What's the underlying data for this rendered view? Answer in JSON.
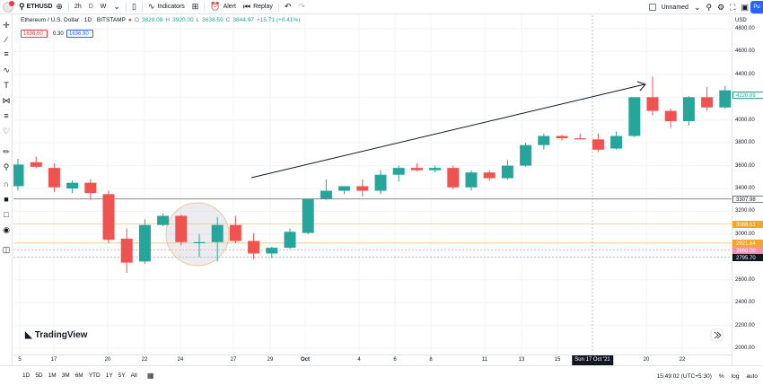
{
  "toolbar": {
    "symbol": "ETHUSD",
    "intervals": [
      "2h",
      "D",
      "W"
    ],
    "indicators_label": "Indicators",
    "alert_label": "Alert",
    "replay_label": "Replay",
    "layout_name": "Unnamed",
    "publish_label": "Pu"
  },
  "legend": {
    "title": "Ethereum / U.S. Dollar · 1D · BITSTAMP",
    "o_label": "O",
    "o_value": "3828.09",
    "h_label": "H",
    "h_value": "3920.00",
    "l_label": "L",
    "l_value": "3638.59",
    "c_label": "C",
    "c_value": "3844.97",
    "change": "+15.71 (+0.41%)",
    "sell_price": "1636.60",
    "spread": "0.30",
    "buy_price": "1636.90"
  },
  "price_axis": {
    "currency": "USD",
    "ticks": [
      "4800.00",
      "4600.00",
      "4400.00",
      "4200.00",
      "4000.00",
      "3800.00",
      "3600.00",
      "3400.00",
      "3200.00",
      "3000.00",
      "2800.00",
      "2600.00",
      "2400.00",
      "2200.00",
      "2000.00"
    ],
    "labels": {
      "last": "4220.89",
      "line_3307": "3307.98",
      "line_3088": "3088.61",
      "line_2921": "2921.64",
      "line_2860": "2860.00",
      "crosshair": "2795.70"
    }
  },
  "time_axis": {
    "ticks": [
      "5",
      "17",
      "20",
      "22",
      "24",
      "27",
      "29",
      "Oct",
      "4",
      "6",
      "8",
      "11",
      "13",
      "15",
      "20",
      "22"
    ],
    "crosshair_label": "Sun 17 Oct '21"
  },
  "bottom": {
    "ranges": [
      "1D",
      "5D",
      "1M",
      "3M",
      "6M",
      "YTD",
      "1Y",
      "5Y",
      "All"
    ],
    "clock": "15:49:02 (UTC+5:30)",
    "percent_label": "%",
    "log_label": "log",
    "auto_label": "auto"
  },
  "logo_text": "TradingView",
  "colors": {
    "up": "#26a69a",
    "down": "#ef5350",
    "accent": "#2962ff"
  },
  "chart_data": {
    "type": "candlestick",
    "y_range": [
      1900,
      4900
    ],
    "candles": [
      {
        "o": 3420,
        "h": 3660,
        "l": 3380,
        "c": 3610
      },
      {
        "o": 3630,
        "h": 3680,
        "l": 3580,
        "c": 3590
      },
      {
        "o": 3580,
        "h": 3620,
        "l": 3370,
        "c": 3410
      },
      {
        "o": 3400,
        "h": 3470,
        "l": 3360,
        "c": 3450
      },
      {
        "o": 3450,
        "h": 3480,
        "l": 3300,
        "c": 3360
      },
      {
        "o": 3350,
        "h": 3380,
        "l": 2920,
        "c": 2950
      },
      {
        "o": 2960,
        "h": 3050,
        "l": 2660,
        "c": 2750
      },
      {
        "o": 2760,
        "h": 3130,
        "l": 2740,
        "c": 3080
      },
      {
        "o": 3080,
        "h": 3180,
        "l": 3070,
        "c": 3160
      },
      {
        "o": 3160,
        "h": 3170,
        "l": 2900,
        "c": 2930
      },
      {
        "o": 2930,
        "h": 3000,
        "l": 2800,
        "c": 2930
      },
      {
        "o": 2930,
        "h": 3150,
        "l": 2760,
        "c": 3080
      },
      {
        "o": 3080,
        "h": 3160,
        "l": 2920,
        "c": 2940
      },
      {
        "o": 2940,
        "h": 3010,
        "l": 2780,
        "c": 2830
      },
      {
        "o": 2830,
        "h": 2890,
        "l": 2790,
        "c": 2880
      },
      {
        "o": 2880,
        "h": 3050,
        "l": 2870,
        "c": 3020
      },
      {
        "o": 3010,
        "h": 3310,
        "l": 3000,
        "c": 3310
      },
      {
        "o": 3310,
        "h": 3480,
        "l": 3300,
        "c": 3380
      },
      {
        "o": 3380,
        "h": 3420,
        "l": 3350,
        "c": 3420
      },
      {
        "o": 3420,
        "h": 3480,
        "l": 3330,
        "c": 3380
      },
      {
        "o": 3380,
        "h": 3560,
        "l": 3350,
        "c": 3520
      },
      {
        "o": 3520,
        "h": 3600,
        "l": 3460,
        "c": 3580
      },
      {
        "o": 3580,
        "h": 3620,
        "l": 3550,
        "c": 3560
      },
      {
        "o": 3560,
        "h": 3600,
        "l": 3540,
        "c": 3580
      },
      {
        "o": 3580,
        "h": 3600,
        "l": 3390,
        "c": 3410
      },
      {
        "o": 3410,
        "h": 3560,
        "l": 3380,
        "c": 3540
      },
      {
        "o": 3540,
        "h": 3560,
        "l": 3470,
        "c": 3490
      },
      {
        "o": 3490,
        "h": 3650,
        "l": 3480,
        "c": 3600
      },
      {
        "o": 3600,
        "h": 3800,
        "l": 3590,
        "c": 3780
      },
      {
        "o": 3780,
        "h": 3880,
        "l": 3740,
        "c": 3860
      },
      {
        "o": 3860,
        "h": 3870,
        "l": 3820,
        "c": 3840
      },
      {
        "o": 3840,
        "h": 3880,
        "l": 3830,
        "c": 3830
      },
      {
        "o": 3830,
        "h": 3880,
        "l": 3720,
        "c": 3740
      },
      {
        "o": 3750,
        "h": 3900,
        "l": 3740,
        "c": 3860
      },
      {
        "o": 3860,
        "h": 4200,
        "l": 3850,
        "c": 4200
      },
      {
        "o": 4200,
        "h": 4380,
        "l": 4040,
        "c": 4080
      },
      {
        "o": 4080,
        "h": 4100,
        "l": 3930,
        "c": 3990
      },
      {
        "o": 3990,
        "h": 4210,
        "l": 3950,
        "c": 4200
      },
      {
        "o": 4200,
        "h": 4290,
        "l": 4080,
        "c": 4110
      },
      {
        "o": 4110,
        "h": 4300,
        "l": 4100,
        "c": 4260
      }
    ]
  }
}
